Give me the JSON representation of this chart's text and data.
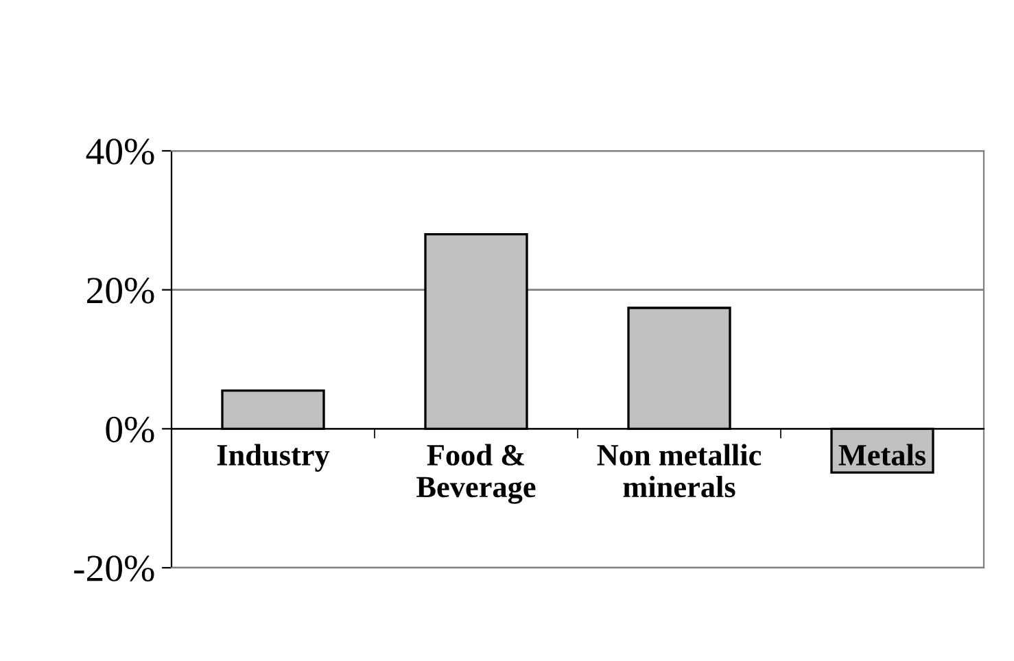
{
  "chart_data": {
    "type": "bar",
    "categories": [
      "Industry",
      "Food &\nBeverage",
      "Non metallic\nminerals",
      "Metals"
    ],
    "values": [
      5.5,
      28,
      17.4,
      -6.3
    ],
    "color": "#c0c0c0",
    "ylim": [
      -20,
      40
    ],
    "yticks": [
      {
        "value": -20,
        "label": "-20%"
      },
      {
        "value": 0,
        "label": "0%"
      },
      {
        "value": 20,
        "label": "20%"
      },
      {
        "value": 40,
        "label": "40%"
      }
    ],
    "grid": "y"
  }
}
